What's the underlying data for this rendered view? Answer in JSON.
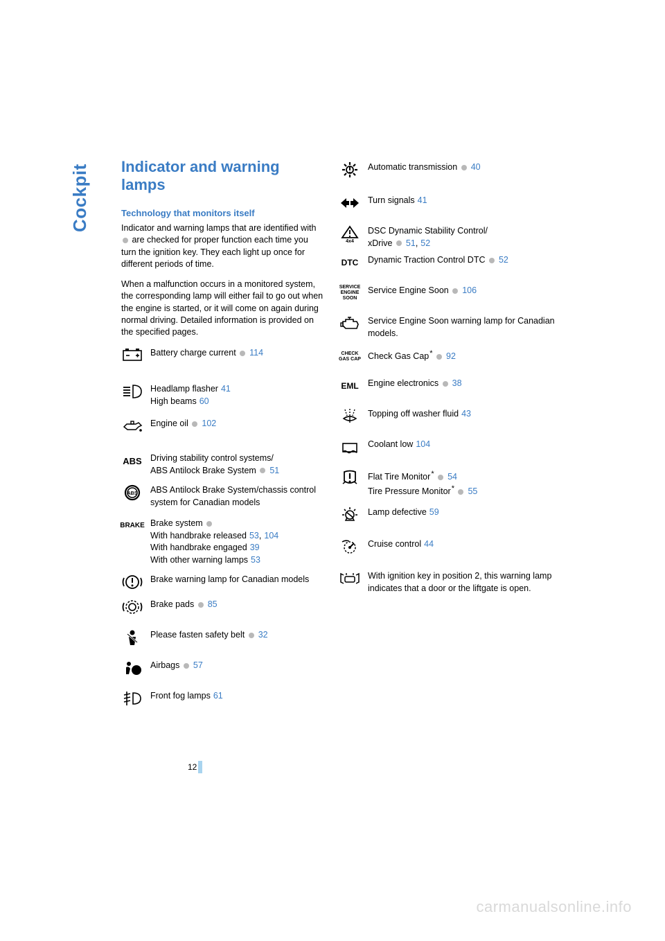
{
  "sidebar": {
    "label": "Cockpit"
  },
  "heading": "Indicator and warning lamps",
  "subheading": "Technology that monitors itself",
  "intro_p1_a": "Indicator and warning lamps that are identified with ",
  "intro_p1_b": " are checked for proper function each time you turn the ignition key. They each light up once for different periods of time.",
  "intro_p2": "When a malfunction occurs in a monitored system, the corresponding lamp will either fail to go out when the engine is started, or it will come on again during normal driving. Detailed information is provided on the specified pages.",
  "left_items": [
    {
      "lines": [
        {
          "text": "Battery charge current",
          "dot": true,
          "links": [
            "114"
          ]
        }
      ]
    },
    {
      "lines": [
        {
          "text": "Headlamp flasher",
          "links": [
            "41"
          ]
        },
        {
          "text": "High beams",
          "links": [
            "60"
          ]
        }
      ]
    },
    {
      "lines": [
        {
          "text": "Engine oil",
          "dot": true,
          "links": [
            "102"
          ]
        }
      ]
    },
    {
      "lines": [
        {
          "text": "Driving stability control systems/"
        },
        {
          "text": "ABS Antilock Brake System",
          "dot": true,
          "links": [
            "51"
          ]
        }
      ]
    },
    {
      "lines": [
        {
          "text": "ABS Antilock Brake System/chassis control system for Canadian models"
        }
      ]
    },
    {
      "lines": [
        {
          "text": "Brake system",
          "dot": true
        },
        {
          "text": "With handbrake released",
          "links": [
            "53",
            "104"
          ]
        },
        {
          "text": "With handbrake engaged",
          "links": [
            "39"
          ]
        },
        {
          "text": "With other warning lamps",
          "links": [
            "53"
          ]
        }
      ]
    },
    {
      "lines": [
        {
          "text": "Brake warning lamp for Canadian models"
        }
      ]
    },
    {
      "lines": [
        {
          "text": "Brake pads",
          "dot": true,
          "links": [
            "85"
          ]
        }
      ]
    },
    {
      "lines": [
        {
          "text": "Please fasten safety belt",
          "dot": true,
          "links": [
            "32"
          ]
        }
      ]
    },
    {
      "lines": [
        {
          "text": "Airbags",
          "dot": true,
          "links": [
            "57"
          ]
        }
      ]
    },
    {
      "lines": [
        {
          "text": "Front fog lamps",
          "links": [
            "61"
          ]
        }
      ]
    }
  ],
  "right_items": [
    {
      "lines": [
        {
          "text": "Automatic transmission",
          "dot": true,
          "links": [
            "40"
          ]
        }
      ]
    },
    {
      "lines": [
        {
          "text": "Turn signals",
          "links": [
            "41"
          ]
        }
      ]
    },
    {
      "lines": [
        {
          "text": "DSC Dynamic Stability Control/"
        },
        {
          "text": "xDrive",
          "dot": true,
          "links": [
            "51",
            "52"
          ]
        }
      ]
    },
    {
      "lines": [
        {
          "text": "Dynamic Traction Control DTC",
          "dot": true,
          "links": [
            "52"
          ]
        }
      ]
    },
    {
      "lines": [
        {
          "text": "Service Engine Soon",
          "dot": true,
          "links": [
            "106"
          ]
        }
      ]
    },
    {
      "lines": [
        {
          "text": "Service Engine Soon warning lamp for Canadian models."
        }
      ]
    },
    {
      "lines": [
        {
          "text": "Check Gas Cap",
          "star": true,
          "dot": true,
          "links": [
            "92"
          ]
        }
      ]
    },
    {
      "lines": [
        {
          "text": "Engine electronics",
          "dot": true,
          "links": [
            "38"
          ]
        }
      ]
    },
    {
      "lines": [
        {
          "text": "Topping off washer fluid",
          "links": [
            "43"
          ]
        }
      ]
    },
    {
      "lines": [
        {
          "text": "Coolant low",
          "links": [
            "104"
          ]
        }
      ]
    },
    {
      "lines": [
        {
          "text": "Flat Tire Monitor",
          "star": true,
          "dot": true,
          "links": [
            "54"
          ]
        },
        {
          "text": "Tire Pressure Monitor",
          "star": true,
          "dot": true,
          "links": [
            "55"
          ]
        }
      ]
    },
    {
      "lines": [
        {
          "text": "Lamp defective",
          "links": [
            "59"
          ]
        }
      ]
    },
    {
      "lines": [
        {
          "text": "Cruise control",
          "links": [
            "44"
          ]
        }
      ]
    },
    {
      "lines": [
        {
          "text": "With ignition key in position 2, this warning lamp indicates that a door or the liftgate is open."
        }
      ]
    }
  ],
  "left_icons": [
    "battery",
    "headlamp",
    "oilcan",
    "abs",
    "abs-circle",
    "brake-text",
    "brake-circle",
    "brake-pads",
    "seatbelt",
    "airbag",
    "foglamp"
  ],
  "right_icons": [
    "gear",
    "turn-arrows",
    "dsc-4x4",
    "dtc-text",
    "service-text",
    "engine",
    "gascap-text",
    "eml-text",
    "washer",
    "coolant",
    "flat-tire",
    "lamp-defect",
    "cruise",
    "door-open"
  ],
  "page_number": "12",
  "watermark": "carmanualsonline.info",
  "colors": {
    "accent": "#3a7cc4",
    "dot": "#b8b8b8",
    "watermark": "#d9d9d9",
    "pagetab": "#a9d4ef"
  }
}
